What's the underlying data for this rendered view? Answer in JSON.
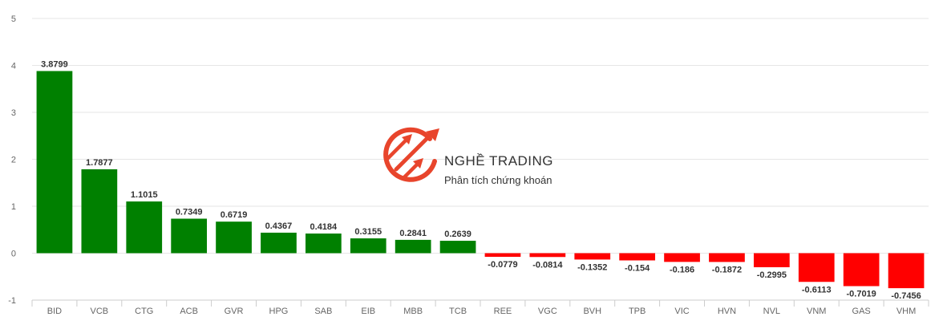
{
  "chart_data": {
    "type": "bar",
    "categories": [
      "BID",
      "VCB",
      "CTG",
      "ACB",
      "GVR",
      "HPG",
      "SAB",
      "EIB",
      "MBB",
      "TCB",
      "REE",
      "VGC",
      "BVH",
      "TPB",
      "VIC",
      "HVN",
      "NVL",
      "VNM",
      "GAS",
      "VHM"
    ],
    "values": [
      3.8799,
      1.7877,
      1.1015,
      0.7349,
      0.6719,
      0.4367,
      0.4184,
      0.3155,
      0.2841,
      0.2639,
      -0.0779,
      -0.0814,
      -0.1352,
      -0.154,
      -0.186,
      -0.1872,
      -0.2995,
      -0.6113,
      -0.7019,
      -0.7456
    ],
    "data_labels": [
      "3.8799",
      "1.7877",
      "1.1015",
      "0.7349",
      "0.6719",
      "0.4367",
      "0.4184",
      "0.3155",
      "0.2841",
      "0.2639",
      "-0.0779",
      "-0.0814",
      "-0.1352",
      "-0.154",
      "-0.186",
      "-0.1872",
      "-0.2995",
      "-0.6113",
      "-0.7019",
      "-0.7456"
    ],
    "ylim": [
      -1,
      5
    ],
    "yticks": [
      "-1",
      "0",
      "1",
      "2",
      "3",
      "4",
      "5"
    ],
    "grid": true,
    "colors": {
      "positive": "#008000",
      "negative": "#ff0000",
      "grid": "#e6e6e6"
    }
  },
  "watermark": {
    "brand": "NGHỀ TRADING",
    "tagline": "Phân tích chứng khoán",
    "logo_icon": "rising-arrows-circle-icon",
    "color": "#e8452c"
  }
}
